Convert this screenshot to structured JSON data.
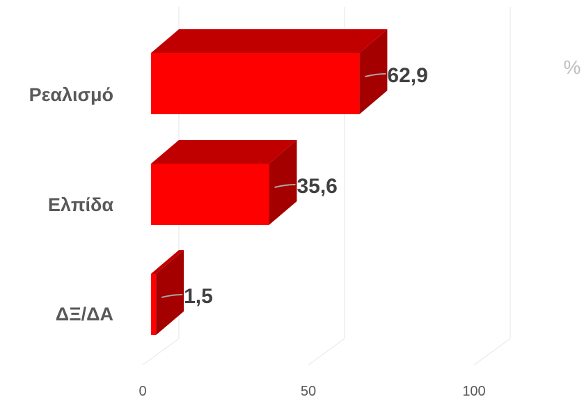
{
  "chart_data": {
    "type": "bar",
    "orientation": "horizontal",
    "style": "3d",
    "categories": [
      "Ρεαλισμό",
      "Ελπίδα",
      "ΔΞ/ΔΑ"
    ],
    "values": [
      62.9,
      35.6,
      1.5
    ],
    "value_labels": [
      "62,9",
      "35,6",
      "1,5"
    ],
    "x_ticks": [
      "0",
      "50",
      "100"
    ],
    "xlim": [
      0,
      100
    ],
    "unit": "%",
    "grid": true,
    "legend": "none",
    "colors": {
      "bar_front": "#ff0000",
      "bar_top": "#c00000",
      "bar_side": "#a50000",
      "grid": "#e6e6e6",
      "leader": "#a6a6a6"
    }
  }
}
